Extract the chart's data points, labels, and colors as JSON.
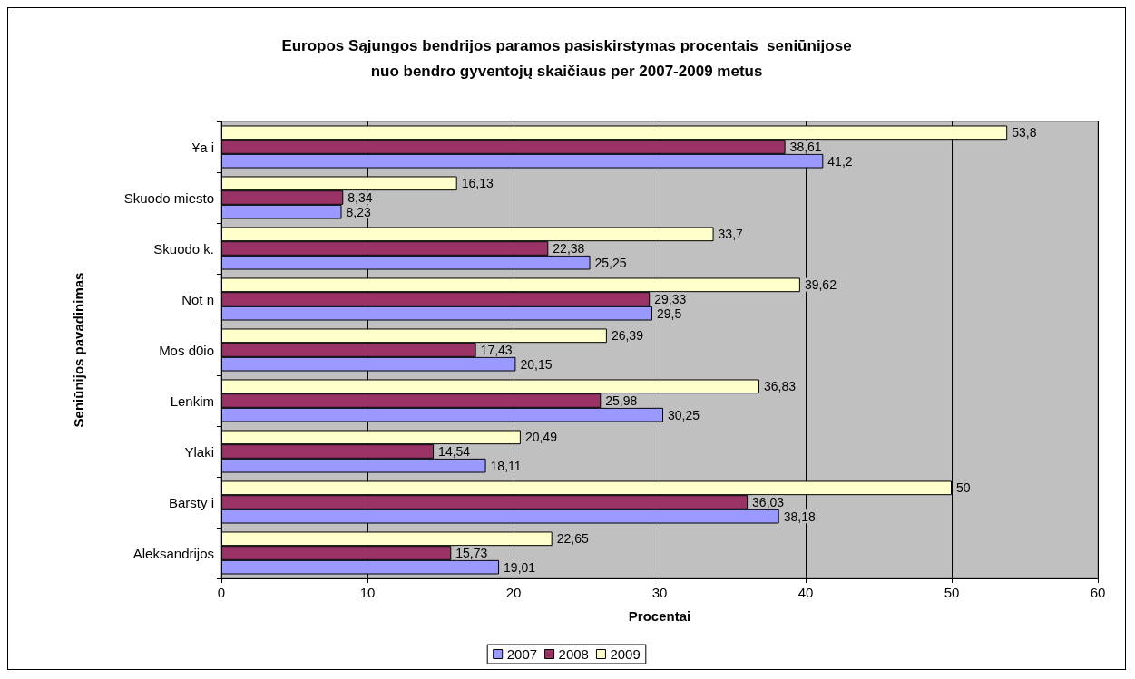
{
  "chart_data": {
    "type": "bar",
    "orientation": "horizontal",
    "title": "Europos Sąjungos bendrijos paramos pasiskirstymas procentais  seniūnijose\nnuo bendro gyventojų skaičiaus per 2007-2009 metus",
    "xlabel": "Procentai",
    "ylabel": "Seniūnijos pavadinimas",
    "categories": [
      "¥a i",
      "Skuodo miesto",
      "Skuodo k.",
      "Not n",
      "Mos d0io",
      "Lenkim",
      "Ylaki",
      "Barsty i",
      "Aleksandrijos"
    ],
    "series": [
      {
        "name": "2007",
        "color": "#9999ff",
        "values": [
          41.2,
          8.23,
          25.25,
          29.5,
          20.15,
          30.25,
          18.11,
          38.18,
          19.01
        ],
        "value_labels": [
          "41,2",
          "8,23",
          "25,25",
          "29,5",
          "20,15",
          "30,25",
          "18,11",
          "38,18",
          "19,01"
        ]
      },
      {
        "name": "2008",
        "color": "#993366",
        "values": [
          38.61,
          8.34,
          22.38,
          29.33,
          17.43,
          25.98,
          14.54,
          36.03,
          15.73
        ],
        "value_labels": [
          "38,61",
          "8,34",
          "22,38",
          "29,33",
          "17,43",
          "25,98",
          "14,54",
          "36,03",
          "15,73"
        ]
      },
      {
        "name": "2009",
        "color": "#ffffcc",
        "values": [
          53.8,
          16.13,
          33.7,
          39.62,
          26.39,
          36.83,
          20.49,
          50,
          22.65
        ],
        "value_labels": [
          "53,8",
          "16,13",
          "33,7",
          "39,62",
          "26,39",
          "36,83",
          "20,49",
          "50",
          "22,65"
        ]
      }
    ],
    "xlim": [
      0,
      60
    ],
    "xticks": [
      0,
      10,
      20,
      30,
      40,
      50,
      60
    ],
    "grid": "x",
    "legend": "bottom"
  }
}
